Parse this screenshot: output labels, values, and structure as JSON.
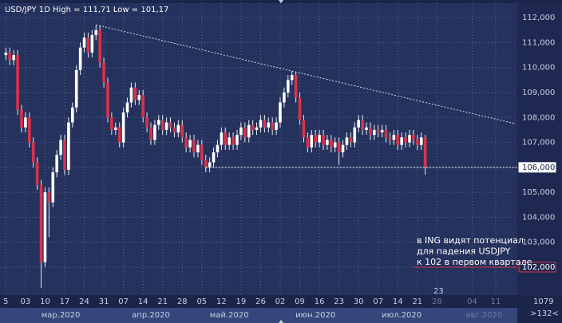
{
  "chart_data": {
    "type": "candlestick",
    "title": "USD/JPY 1D High = 111,71 Low = 101,17",
    "up_color": "#ffffff",
    "down_color": "#d8334a",
    "grid": true,
    "ylim": [
      100.88,
      112.58
    ],
    "xlim": [
      -1.5,
      130.5
    ],
    "yticks": [
      {
        "value": 102,
        "label": "102,000"
      },
      {
        "value": 103,
        "label": "103,000"
      },
      {
        "value": 104,
        "label": "104,000"
      },
      {
        "value": 105,
        "label": "105,000"
      },
      {
        "value": 106,
        "label": "106,000"
      },
      {
        "value": 107,
        "label": "107,000"
      },
      {
        "value": 108,
        "label": "108,000"
      },
      {
        "value": 109,
        "label": "109,000"
      },
      {
        "value": 110,
        "label": "110,000"
      },
      {
        "value": 111,
        "label": "111,000"
      },
      {
        "value": 112,
        "label": "112,000"
      }
    ],
    "xticks": [
      {
        "value": 0,
        "label": "5"
      },
      {
        "value": 5,
        "label": "03"
      },
      {
        "value": 10,
        "label": "10"
      },
      {
        "value": 15,
        "label": "17"
      },
      {
        "value": 20,
        "label": "24"
      },
      {
        "value": 25,
        "label": "31"
      },
      {
        "value": 30,
        "label": "07"
      },
      {
        "value": 35,
        "label": "14"
      },
      {
        "value": 40,
        "label": "21"
      },
      {
        "value": 45,
        "label": "28"
      },
      {
        "value": 50,
        "label": "05"
      },
      {
        "value": 55,
        "label": "12"
      },
      {
        "value": 60,
        "label": "19"
      },
      {
        "value": 65,
        "label": "26"
      },
      {
        "value": 70,
        "label": "02"
      },
      {
        "value": 75,
        "label": "09"
      },
      {
        "value": 80,
        "label": "16"
      },
      {
        "value": 85,
        "label": "23"
      },
      {
        "value": 90,
        "label": "30"
      },
      {
        "value": 95,
        "label": "07"
      },
      {
        "value": 100,
        "label": "14"
      },
      {
        "value": 105,
        "label": "21"
      },
      {
        "value": 110,
        "label": "28"
      },
      {
        "value": 119,
        "label": "04"
      },
      {
        "value": 125,
        "label": "11"
      }
    ],
    "months": [
      {
        "value": 14,
        "label": "мар.2020"
      },
      {
        "value": 37,
        "label": "апр.2020"
      },
      {
        "value": 57,
        "label": "май.2020"
      },
      {
        "value": 79,
        "label": "июн.2020"
      },
      {
        "value": 101,
        "label": "июл.2020"
      },
      {
        "value": 122,
        "label": "авг.2020"
      }
    ],
    "candles": [
      [
        110.5,
        110.8,
        110.3,
        110.6
      ],
      [
        110.6,
        110.8,
        110.1,
        110.3
      ],
      [
        110.3,
        110.7,
        110.1,
        110.5
      ],
      [
        110.5,
        110.7,
        108.1,
        108.3
      ],
      [
        108.3,
        108.5,
        107.4,
        107.6
      ],
      [
        107.6,
        108.2,
        107.4,
        108.0
      ],
      [
        108.0,
        108.2,
        106.8,
        107.0
      ],
      [
        107.0,
        107.2,
        106.0,
        106.2
      ],
      [
        106.2,
        106.4,
        105.1,
        105.3
      ],
      [
        105.3,
        105.5,
        101.17,
        102.2
      ],
      [
        102.2,
        105.2,
        102.0,
        105.0
      ],
      [
        105.0,
        105.2,
        103.2,
        104.6
      ],
      [
        104.6,
        106.0,
        104.4,
        105.8
      ],
      [
        105.8,
        106.7,
        105.6,
        106.5
      ],
      [
        106.5,
        107.3,
        106.3,
        107.1
      ],
      [
        107.1,
        107.3,
        105.7,
        105.9
      ],
      [
        105.9,
        108.0,
        105.7,
        107.8
      ],
      [
        107.8,
        108.6,
        107.6,
        108.4
      ],
      [
        108.4,
        110.1,
        108.2,
        109.9
      ],
      [
        109.9,
        111.0,
        109.7,
        110.8
      ],
      [
        110.8,
        111.4,
        110.6,
        111.2
      ],
      [
        111.2,
        111.4,
        110.4,
        110.6
      ],
      [
        110.6,
        111.5,
        110.4,
        111.3
      ],
      [
        111.3,
        111.71,
        111.1,
        111.5
      ],
      [
        111.5,
        111.7,
        110.0,
        110.2
      ],
      [
        110.2,
        110.4,
        109.2,
        109.4
      ],
      [
        109.4,
        109.6,
        107.8,
        108.0
      ],
      [
        108.0,
        108.2,
        107.3,
        107.5
      ],
      [
        107.5,
        107.8,
        107.3,
        107.6
      ],
      [
        107.6,
        107.8,
        106.8,
        107.0
      ],
      [
        107.0,
        108.4,
        106.8,
        108.2
      ],
      [
        108.2,
        108.8,
        108.0,
        108.6
      ],
      [
        108.6,
        109.4,
        108.4,
        109.2
      ],
      [
        109.2,
        109.4,
        108.5,
        108.7
      ],
      [
        108.7,
        109.1,
        108.5,
        108.9
      ],
      [
        108.9,
        109.1,
        107.8,
        108.0
      ],
      [
        108.0,
        108.2,
        107.4,
        107.6
      ],
      [
        107.6,
        107.8,
        106.9,
        107.1
      ],
      [
        107.1,
        107.9,
        106.9,
        107.7
      ],
      [
        107.7,
        108.1,
        107.5,
        107.9
      ],
      [
        107.9,
        108.1,
        107.3,
        107.5
      ],
      [
        107.5,
        108.0,
        107.3,
        107.8
      ],
      [
        107.8,
        108.0,
        107.4,
        107.6
      ],
      [
        107.6,
        107.8,
        107.2,
        107.4
      ],
      [
        107.4,
        107.9,
        107.2,
        107.7
      ],
      [
        107.7,
        107.9,
        107.0,
        107.2
      ],
      [
        107.2,
        107.4,
        106.6,
        106.8
      ],
      [
        106.8,
        107.3,
        106.6,
        107.1
      ],
      [
        107.1,
        107.3,
        106.4,
        106.6
      ],
      [
        106.6,
        107.1,
        106.4,
        106.9
      ],
      [
        106.9,
        107.1,
        106.1,
        106.3
      ],
      [
        106.3,
        106.5,
        105.8,
        106.0
      ],
      [
        106.0,
        106.4,
        105.8,
        106.2
      ],
      [
        106.2,
        106.8,
        106.0,
        106.6
      ],
      [
        106.6,
        107.1,
        106.4,
        106.9
      ],
      [
        106.9,
        107.6,
        106.7,
        107.4
      ],
      [
        107.4,
        107.6,
        106.7,
        106.9
      ],
      [
        106.9,
        107.4,
        106.7,
        107.2
      ],
      [
        107.2,
        107.4,
        106.7,
        106.9
      ],
      [
        106.9,
        107.5,
        106.7,
        107.3
      ],
      [
        107.3,
        107.8,
        107.1,
        107.6
      ],
      [
        107.6,
        107.8,
        107.0,
        107.2
      ],
      [
        107.2,
        107.9,
        107.0,
        107.7
      ],
      [
        107.7,
        107.9,
        107.3,
        107.5
      ],
      [
        107.5,
        107.8,
        107.3,
        107.6
      ],
      [
        107.6,
        108.1,
        107.4,
        107.9
      ],
      [
        107.9,
        108.1,
        107.4,
        107.6
      ],
      [
        107.6,
        108.0,
        107.4,
        107.8
      ],
      [
        107.8,
        108.0,
        107.3,
        107.5
      ],
      [
        107.5,
        108.0,
        107.3,
        107.8
      ],
      [
        107.8,
        108.8,
        107.6,
        108.6
      ],
      [
        108.6,
        109.2,
        108.4,
        109.0
      ],
      [
        109.0,
        109.7,
        108.8,
        109.5
      ],
      [
        109.5,
        109.85,
        109.3,
        109.7
      ],
      [
        109.7,
        109.8,
        108.6,
        108.8
      ],
      [
        108.8,
        109.0,
        107.7,
        107.9
      ],
      [
        107.9,
        108.1,
        107.0,
        107.2
      ],
      [
        107.2,
        107.4,
        106.6,
        106.8
      ],
      [
        106.8,
        107.5,
        106.6,
        107.3
      ],
      [
        107.3,
        107.5,
        106.8,
        107.0
      ],
      [
        107.0,
        107.5,
        106.8,
        107.3
      ],
      [
        107.3,
        107.5,
        106.7,
        106.9
      ],
      [
        106.9,
        107.3,
        106.7,
        107.1
      ],
      [
        107.1,
        107.3,
        106.6,
        106.8
      ],
      [
        106.8,
        107.2,
        106.6,
        107.0
      ],
      [
        107.0,
        107.2,
        106.1,
        106.6
      ],
      [
        106.6,
        107.1,
        106.4,
        106.9
      ],
      [
        106.9,
        107.4,
        106.7,
        107.2
      ],
      [
        107.2,
        107.4,
        106.8,
        107.0
      ],
      [
        107.0,
        107.8,
        106.8,
        107.6
      ],
      [
        107.6,
        108.1,
        107.4,
        107.9
      ],
      [
        107.9,
        108.1,
        107.3,
        107.5
      ],
      [
        107.5,
        107.8,
        107.3,
        107.6
      ],
      [
        107.6,
        107.8,
        107.1,
        107.3
      ],
      [
        107.3,
        107.7,
        107.1,
        107.5
      ],
      [
        107.5,
        107.7,
        107.2,
        107.4
      ],
      [
        107.4,
        107.7,
        107.2,
        107.5
      ],
      [
        107.5,
        107.7,
        107.0,
        107.2
      ],
      [
        107.2,
        107.4,
        106.9,
        107.1
      ],
      [
        107.1,
        107.5,
        106.9,
        107.3
      ],
      [
        107.3,
        107.5,
        106.7,
        106.9
      ],
      [
        106.9,
        107.4,
        106.7,
        107.2
      ],
      [
        107.2,
        107.4,
        106.8,
        107.0
      ],
      [
        107.0,
        107.5,
        106.8,
        107.3
      ],
      [
        107.3,
        107.5,
        106.9,
        107.1
      ],
      [
        107.1,
        107.3,
        106.7,
        106.9
      ],
      [
        106.9,
        107.4,
        106.7,
        107.2
      ],
      [
        107.2,
        107.3,
        105.7,
        106.0
      ]
    ],
    "trendline": {
      "x": [
        23,
        130
      ],
      "y": [
        111.71,
        107.75
      ]
    },
    "levels": [
      {
        "value": 106,
        "label": "106,000",
        "color": "#ffffff",
        "from": 51
      },
      {
        "value": 102,
        "label": "102,000",
        "color": "#d8334a",
        "from": 104
      }
    ],
    "annotation": [
      "в ING видят потенциал",
      "для падения USDJPY",
      "к 102 в первом квартале"
    ],
    "cursor_label": "23",
    "bars_count": "1079",
    "scroll_label": ">132<"
  }
}
